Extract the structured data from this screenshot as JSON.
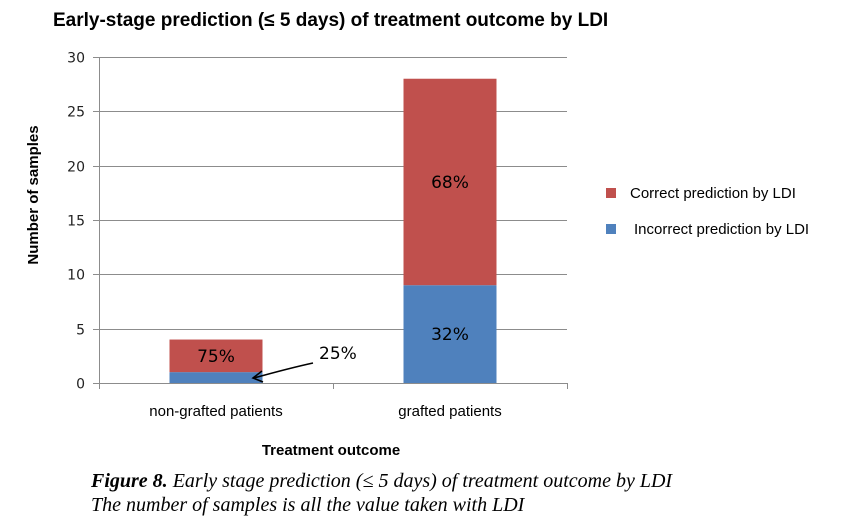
{
  "chart_data": {
    "type": "bar",
    "stacked": true,
    "title": "Early-stage prediction (≤ 5 days) of treatment outcome by LDI",
    "xlabel": "Treatment outcome",
    "ylabel": "Number of samples",
    "ylim": [
      0,
      30
    ],
    "yticks": [
      0,
      5,
      10,
      15,
      20,
      25,
      30
    ],
    "grid": true,
    "legend_position": "right",
    "categories": [
      "non-grafted patients",
      "grafted patients"
    ],
    "series": [
      {
        "name": "Incorrect prediction by LDI",
        "color": "#4f81bd",
        "values": [
          1,
          9
        ],
        "labels": [
          "25%",
          "32%"
        ]
      },
      {
        "name": "Correct prediction by LDI",
        "color": "#c0504d",
        "values": [
          3,
          19
        ],
        "labels": [
          "75%",
          "68%"
        ]
      }
    ],
    "legend_order": [
      "Correct prediction by LDI",
      "Incorrect prediction by LDI"
    ],
    "annotations": [
      {
        "text": "25%",
        "points_to": "non-grafted patients / Incorrect prediction by LDI",
        "style": "arrow"
      }
    ]
  },
  "caption": {
    "figure_label": "Figure 8.",
    "line1": " Early stage prediction (≤ 5 days) of treatment outcome by LDI",
    "line2": "The number of samples is all the value taken with LDI"
  }
}
